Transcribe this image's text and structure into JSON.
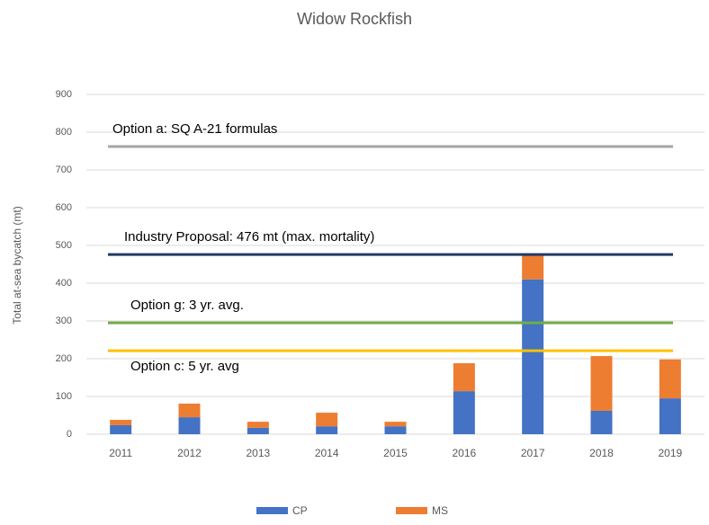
{
  "chart_data": {
    "type": "stacked_bar",
    "title": "Widow Rockfish",
    "y_label": "Total at-sea bycatch (mt)",
    "categories": [
      "2011",
      "2012",
      "2013",
      "2014",
      "2015",
      "2016",
      "2017",
      "2018",
      "2019"
    ],
    "series": [
      {
        "name": "CP",
        "color": "#4472c4",
        "values": [
          24,
          45,
          17,
          21,
          21,
          114,
          410,
          62,
          95
        ]
      },
      {
        "name": "MS",
        "color": "#ed7d31",
        "values": [
          14,
          36,
          16,
          36,
          12,
          74,
          66,
          145,
          103
        ]
      }
    ],
    "reference_lines": [
      {
        "label": "Option a: SQ A-21 formulas",
        "value": 762,
        "color": "#a5a5a5",
        "label_position": "above"
      },
      {
        "label": "Industry Proposal: 476 mt (max. mortality)",
        "value": 476,
        "color": "#203864",
        "label_position": "above"
      },
      {
        "label": "Option g: 3 yr. avg.",
        "value": 295,
        "color": "#70ad47",
        "label_position": "above"
      },
      {
        "label": "Option c: 5 yr. avg",
        "value": 221,
        "color": "#ffc000",
        "label_position": "below"
      }
    ],
    "ylim": [
      0,
      900
    ],
    "yticks": [
      0,
      100,
      200,
      300,
      400,
      500,
      600,
      700,
      800,
      900
    ],
    "grid": true,
    "legend": "bottom"
  }
}
